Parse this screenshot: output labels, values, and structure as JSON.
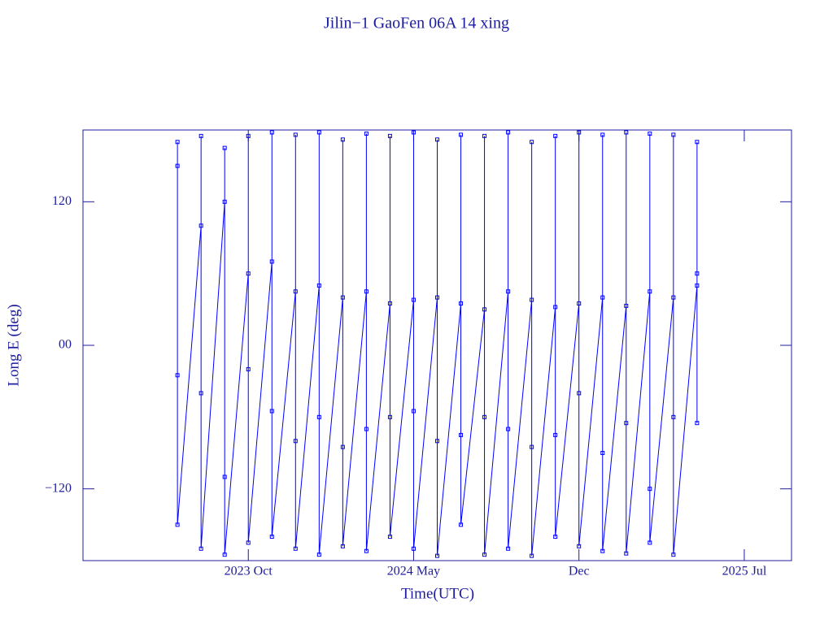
{
  "chart_data": {
    "type": "line",
    "title": "Jilin−1 GaoFen 06A 14 xing",
    "xlabel": "Time(UTC)",
    "ylabel": "Long E (deg)",
    "color": "#0000ff",
    "x": [
      "2023-07",
      "2023-07",
      "2023-07",
      "2023-07",
      "2023-08",
      "2023-08",
      "2023-08",
      "2023-08",
      "2023-09",
      "2023-09",
      "2023-09",
      "2023-09",
      "2023-10",
      "2023-10",
      "2023-10",
      "2023-10",
      "2023-11",
      "2023-11",
      "2023-11",
      "2023-11",
      "2023-12",
      "2023-12",
      "2023-12",
      "2023-12",
      "2024-01",
      "2024-01",
      "2024-01",
      "2024-01",
      "2024-02",
      "2024-02",
      "2024-02",
      "2024-02",
      "2024-03",
      "2024-03",
      "2024-03",
      "2024-03",
      "2024-04",
      "2024-04",
      "2024-04",
      "2024-04",
      "2024-05",
      "2024-05",
      "2024-05",
      "2024-05",
      "2024-06",
      "2024-06",
      "2024-06",
      "2024-06",
      "2024-07",
      "2024-07",
      "2024-07",
      "2024-07",
      "2024-08",
      "2024-08",
      "2024-08",
      "2024-08",
      "2024-09",
      "2024-09",
      "2024-09",
      "2024-09",
      "2024-10",
      "2024-10",
      "2024-10",
      "2024-10",
      "2024-11",
      "2024-11",
      "2024-11",
      "2024-11",
      "2024-12",
      "2024-12",
      "2024-12",
      "2024-12",
      "2025-01",
      "2025-01",
      "2025-01",
      "2025-01",
      "2025-02",
      "2025-02",
      "2025-02",
      "2025-02",
      "2025-03",
      "2025-03",
      "2025-03",
      "2025-03",
      "2025-04",
      "2025-04",
      "2025-04",
      "2025-04",
      "2025-05",
      "2025-05",
      "2025-05",
      "2025-05"
    ],
    "values": [
      150,
      -25,
      170,
      -150,
      100,
      -40,
      175,
      -170,
      120,
      -110,
      165,
      -175,
      60,
      -20,
      175,
      -165,
      70,
      -55,
      178,
      -160,
      45,
      -80,
      176,
      -170,
      50,
      -60,
      178,
      -175,
      40,
      -85,
      172,
      -168,
      45,
      -70,
      177,
      -172,
      35,
      -60,
      175,
      -160,
      38,
      -55,
      178,
      -170,
      40,
      -80,
      172,
      -176,
      35,
      -75,
      176,
      -150,
      30,
      -60,
      175,
      -175,
      45,
      -70,
      178,
      -170,
      38,
      -85,
      170,
      -176,
      32,
      -75,
      175,
      -160,
      35,
      -40,
      178,
      -168,
      40,
      -90,
      176,
      -172,
      33,
      -65,
      178,
      -174,
      45,
      -120,
      177,
      -165,
      40,
      -60,
      176,
      -175,
      50,
      -65,
      170,
      60
    ],
    "xlim": [
      "2023-03",
      "2025-09"
    ],
    "xticks": [
      {
        "value": "2023-10",
        "label": "2023 Oct"
      },
      {
        "value": "2024-05",
        "label": "2024 May"
      },
      {
        "value": "2024-12",
        "label": "Dec"
      },
      {
        "value": "2025-07",
        "label": "2025 Jul"
      }
    ],
    "ylim": [
      -180,
      180
    ],
    "yticks": [
      {
        "value": -120,
        "label": "−120"
      },
      {
        "value": 0,
        "label": "00"
      },
      120
    ]
  }
}
